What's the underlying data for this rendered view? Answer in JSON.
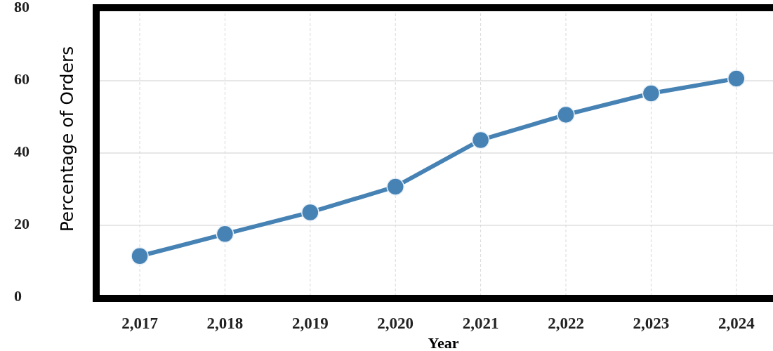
{
  "chart_data": {
    "type": "line",
    "xlabel": "Year",
    "ylabel": "Percentage of Orders",
    "x": [
      2017,
      2018,
      2019,
      2020,
      2021,
      2022,
      2023,
      2024
    ],
    "series": [
      {
        "color": "#4682b4",
        "values": [
          11.5,
          17.6,
          23.6,
          30.7,
          43.6,
          50.6,
          56.5,
          60.6
        ]
      }
    ],
    "xlim": [
      2016.53,
      2024.43
    ],
    "xticks": [
      {
        "value": 2017,
        "label": "2,017"
      },
      {
        "value": 2018,
        "label": "2,018"
      },
      {
        "value": 2019,
        "label": "2,019"
      },
      {
        "value": 2020,
        "label": "2,020"
      },
      {
        "value": 2021,
        "label": "2,021"
      },
      {
        "value": 2022,
        "label": "2,022"
      },
      {
        "value": 2023,
        "label": "2,023"
      },
      {
        "value": 2024,
        "label": "2,024"
      }
    ],
    "ylim": [
      0,
      80
    ],
    "yticks": [
      0,
      20,
      40,
      60,
      80
    ],
    "grid": true,
    "marker": "circle",
    "line_style": "solid"
  }
}
